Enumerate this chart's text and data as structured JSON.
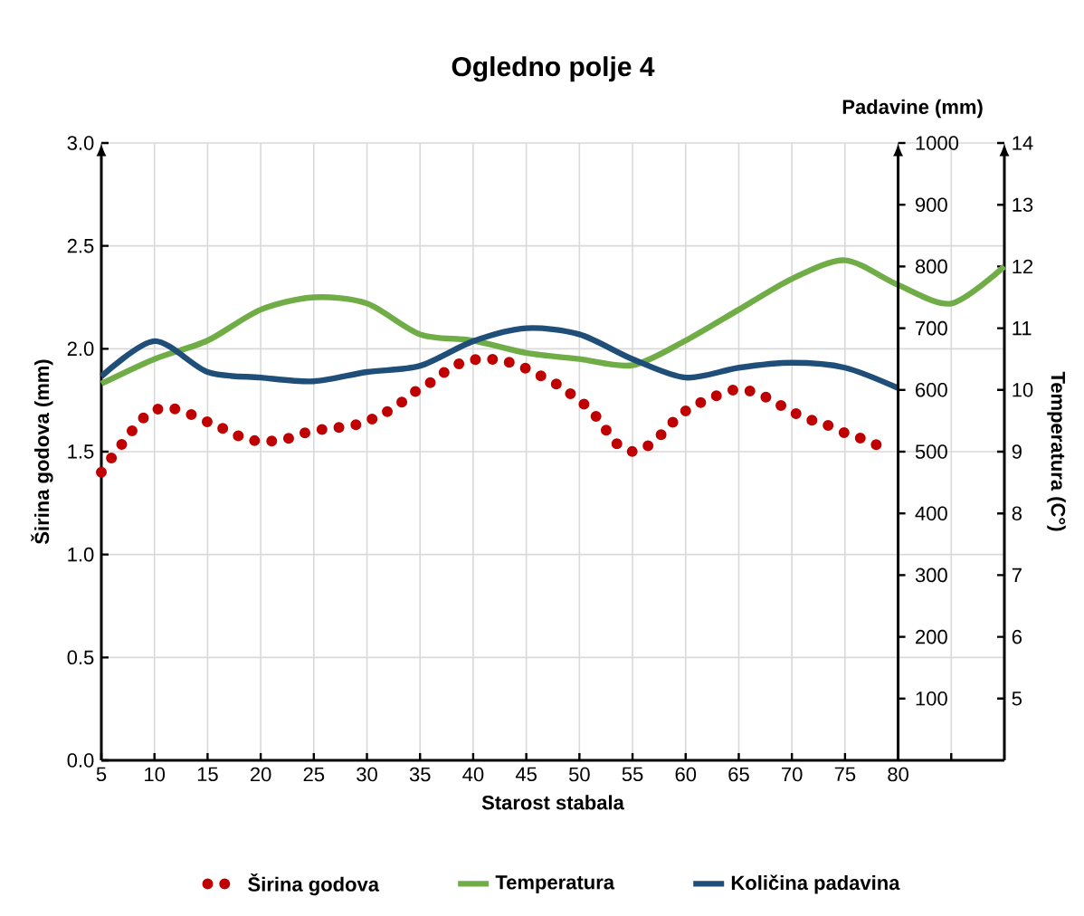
{
  "chart_data": {
    "type": "line",
    "title": "Ogledno polje  4",
    "xlabel": "Starost stabala",
    "ylabel": "Širina godova (mm)",
    "y2label": "Padavine (mm)",
    "y3label": "Temperatura (C°)",
    "xlim": [
      5,
      90
    ],
    "xticks": [
      5,
      10,
      15,
      20,
      25,
      30,
      35,
      40,
      45,
      50,
      55,
      60,
      65,
      70,
      75,
      80,
      {
        "value": 85,
        "label": null
      }
    ],
    "ylim": [
      0,
      3
    ],
    "yticks": [
      {
        "value": 0,
        "label": "0.0"
      },
      0.5,
      {
        "value": 1,
        "label": "1.0"
      },
      1.5,
      {
        "value": 2,
        "label": "2.0"
      },
      2.5,
      {
        "value": 3,
        "label": "3.0"
      }
    ],
    "y2lim": [
      0,
      1000
    ],
    "y2ticks": [
      100,
      200,
      300,
      400,
      500,
      600,
      700,
      800,
      900,
      1000
    ],
    "y3lim": [
      4,
      14
    ],
    "y3ticks": [
      5,
      6,
      7,
      8,
      9,
      10,
      11,
      12,
      13,
      14
    ],
    "grid": true,
    "legend": "bottom",
    "series": [
      {
        "name": "Širina godova",
        "line_style": "dotted",
        "color": "#c00000",
        "x": [
          5,
          6.1,
          7.3,
          8.5,
          9.9,
          11.7,
          13.5,
          15.2,
          17.0,
          18.7,
          20.5,
          22.3,
          24.1,
          26.0,
          27.8,
          29.6,
          31.4,
          33.0,
          34.5,
          36.1,
          37.7,
          39.3,
          41.1,
          43.0,
          44.7,
          46.3,
          48.1,
          49.7,
          51.1,
          52.3,
          53.5,
          55.1,
          56.8,
          58.2,
          59.5,
          61.1,
          62.8,
          64.6,
          66.4,
          68.1,
          69.8,
          71.5,
          73.3,
          75.0,
          76.8,
          78.5
        ],
        "values": [
          1.4,
          1.48,
          1.56,
          1.64,
          1.7,
          1.71,
          1.68,
          1.64,
          1.6,
          1.56,
          1.55,
          1.56,
          1.59,
          1.61,
          1.62,
          1.64,
          1.68,
          1.73,
          1.79,
          1.84,
          1.9,
          1.94,
          1.95,
          1.94,
          1.91,
          1.87,
          1.82,
          1.76,
          1.7,
          1.62,
          1.54,
          1.5,
          1.54,
          1.61,
          1.68,
          1.73,
          1.77,
          1.8,
          1.79,
          1.75,
          1.7,
          1.66,
          1.63,
          1.59,
          1.56,
          1.52
        ]
      },
      {
        "name": "Temperatura",
        "axis": "y3",
        "color": "#70ad47",
        "x": [
          5,
          10,
          15,
          20,
          25,
          30,
          35,
          40,
          45,
          50,
          55,
          60,
          65,
          70,
          75,
          80,
          85,
          90
        ],
        "values": [
          10.1,
          10.5,
          10.8,
          11.3,
          11.5,
          11.4,
          10.9,
          10.8,
          10.6,
          10.5,
          10.4,
          10.8,
          11.3,
          11.8,
          12.1,
          11.7,
          11.4,
          12.0
        ]
      },
      {
        "name": "Količina padavina",
        "axis": "y2",
        "color": "#1f4e79",
        "x": [
          5,
          10,
          15,
          20,
          25,
          30,
          35,
          40,
          45,
          50,
          55,
          60,
          65,
          70,
          75,
          80
        ],
        "values": [
          622,
          679,
          629,
          620,
          614,
          629,
          639,
          679,
          700,
          690,
          650,
          620,
          636,
          644,
          636,
          603
        ]
      }
    ]
  }
}
